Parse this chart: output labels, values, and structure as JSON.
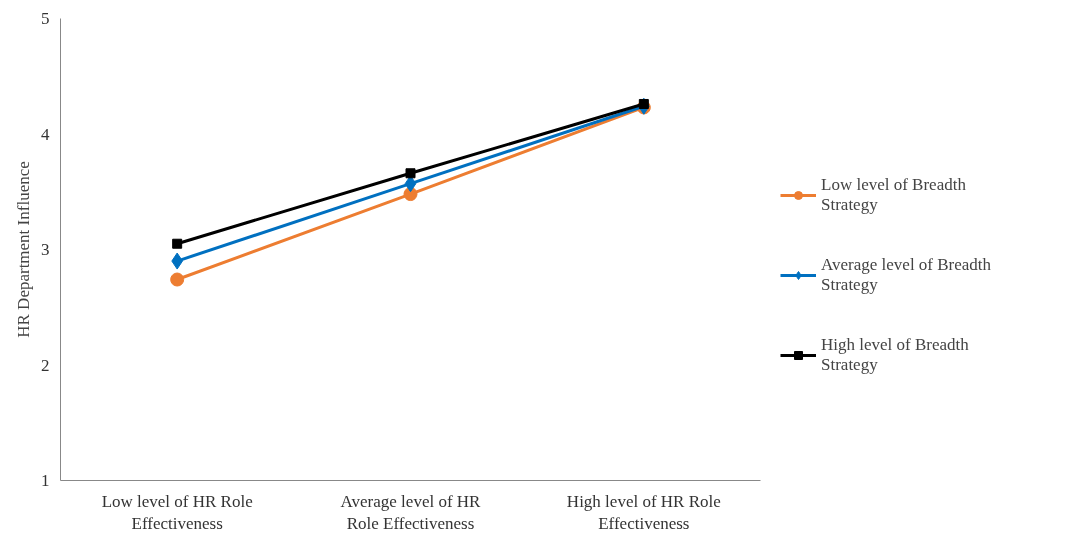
{
  "chart_data": {
    "type": "line",
    "ylabel": "HR Department Influence",
    "categories": [
      "Low level of HR Role Effectiveness",
      "Average level of HR Role Effectiveness",
      "High level of HR Role Effectiveness"
    ],
    "series": [
      {
        "name": "Low level of Breadth Strategy",
        "color": "#ed7d31",
        "marker": "circle",
        "values": [
          2.74,
          3.48,
          4.23
        ]
      },
      {
        "name": "Average level of Breadth Strategy",
        "color": "#0070c0",
        "marker": "diamond",
        "values": [
          2.9,
          3.57,
          4.24
        ]
      },
      {
        "name": "High level of Breadth Strategy",
        "color": "#000000",
        "marker": "square",
        "values": [
          3.05,
          3.66,
          4.26
        ]
      }
    ],
    "ylim": [
      1,
      5
    ],
    "yticks": [
      1,
      2,
      3,
      4,
      5
    ],
    "grid": false,
    "legend": "right"
  }
}
